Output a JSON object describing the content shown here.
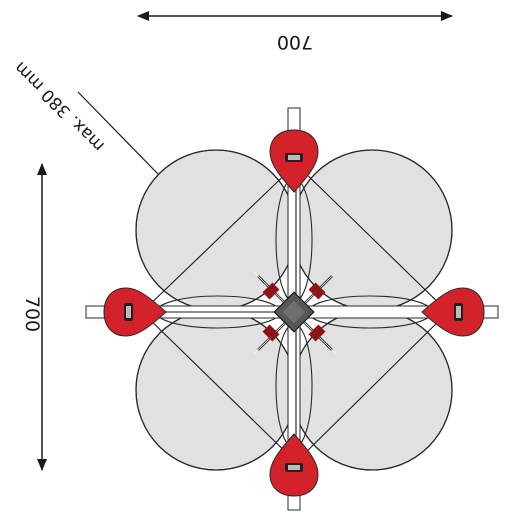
{
  "drawing": {
    "top_dimension": "700",
    "side_dimension": "700",
    "diagonal_label": "max. 380 mm"
  },
  "colors": {
    "ring_fill": "#e1e1e1",
    "ring_stroke": "#2a2a2a",
    "handle_red": "#d3222a",
    "handle_dark": "#8f1419",
    "hub": "#585858",
    "line": "#1a1a1a"
  }
}
